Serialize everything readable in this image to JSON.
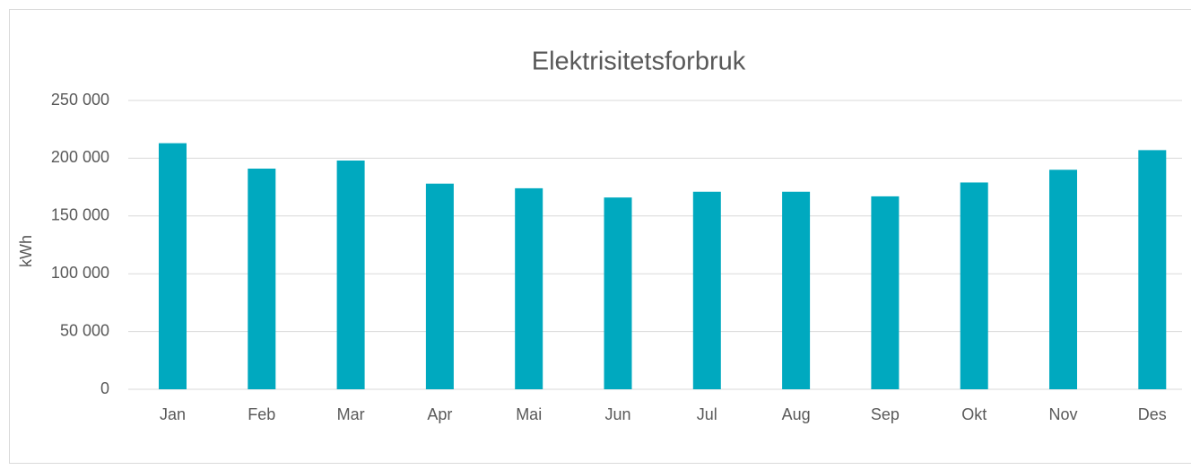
{
  "chart_data": {
    "type": "bar",
    "title": "Elektrisitetsforbruk",
    "y_label": "kWh",
    "categories": [
      "Jan",
      "Feb",
      "Mar",
      "Apr",
      "Mai",
      "Jun",
      "Jul",
      "Aug",
      "Sep",
      "Okt",
      "Nov",
      "Des"
    ],
    "values": [
      213000,
      191000,
      198000,
      178000,
      174000,
      166000,
      171000,
      171000,
      167000,
      179000,
      190000,
      207000
    ],
    "color": "#00a9bf",
    "ylim": [
      0,
      250000
    ],
    "yticks": [
      0,
      {
        "value": 50000,
        "label": "50 000"
      },
      {
        "value": 100000,
        "label": "100 000"
      },
      {
        "value": 150000,
        "label": "150 000"
      },
      {
        "value": 200000,
        "label": "200 000"
      },
      {
        "value": 250000,
        "label": "250 000"
      }
    ],
    "grid": true
  }
}
